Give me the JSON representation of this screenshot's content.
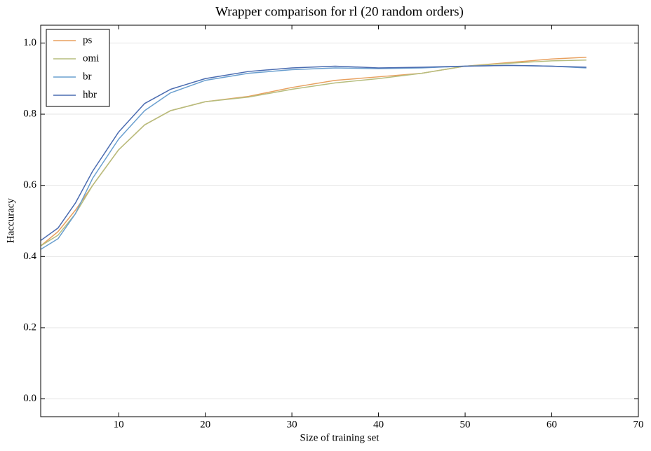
{
  "chart_data": {
    "type": "line",
    "title": "Wrapper comparison for rl (20 random orders)",
    "x_label": "Size of training set",
    "y_label": "Haccuracy",
    "x": [
      1,
      3,
      5,
      7,
      10,
      13,
      16,
      20,
      25,
      30,
      35,
      40,
      45,
      50,
      55,
      60,
      64
    ],
    "series": [
      {
        "name": "ps",
        "color": "#e8a05f",
        "values": [
          0.43,
          0.47,
          0.53,
          0.6,
          0.7,
          0.77,
          0.81,
          0.835,
          0.85,
          0.875,
          0.895,
          0.905,
          0.915,
          0.935,
          0.945,
          0.955,
          0.96
        ]
      },
      {
        "name": "omi",
        "color": "#b6bd7e",
        "values": [
          0.43,
          0.46,
          0.52,
          0.6,
          0.7,
          0.77,
          0.81,
          0.835,
          0.848,
          0.87,
          0.888,
          0.9,
          0.915,
          0.935,
          0.943,
          0.95,
          0.952
        ]
      },
      {
        "name": "br",
        "color": "#6a9fcf",
        "values": [
          0.42,
          0.45,
          0.52,
          0.62,
          0.73,
          0.81,
          0.86,
          0.895,
          0.915,
          0.925,
          0.93,
          0.928,
          0.93,
          0.935,
          0.937,
          0.935,
          0.93
        ]
      },
      {
        "name": "hbr",
        "color": "#4a6bb0",
        "values": [
          0.445,
          0.48,
          0.55,
          0.64,
          0.75,
          0.83,
          0.87,
          0.9,
          0.92,
          0.93,
          0.935,
          0.93,
          0.932,
          0.935,
          0.937,
          0.935,
          0.932
        ]
      }
    ],
    "xlim": [
      1,
      70
    ],
    "xticks": [
      10,
      20,
      30,
      40,
      50,
      60,
      70
    ],
    "ylim": [
      -0.05,
      1.05
    ],
    "yticks": [
      {
        "value": 0,
        "label": "0.0"
      },
      0.2,
      0.4,
      0.6,
      0.8,
      {
        "value": 1,
        "label": "1.0"
      }
    ],
    "grid": true,
    "legend": "upper-left"
  }
}
